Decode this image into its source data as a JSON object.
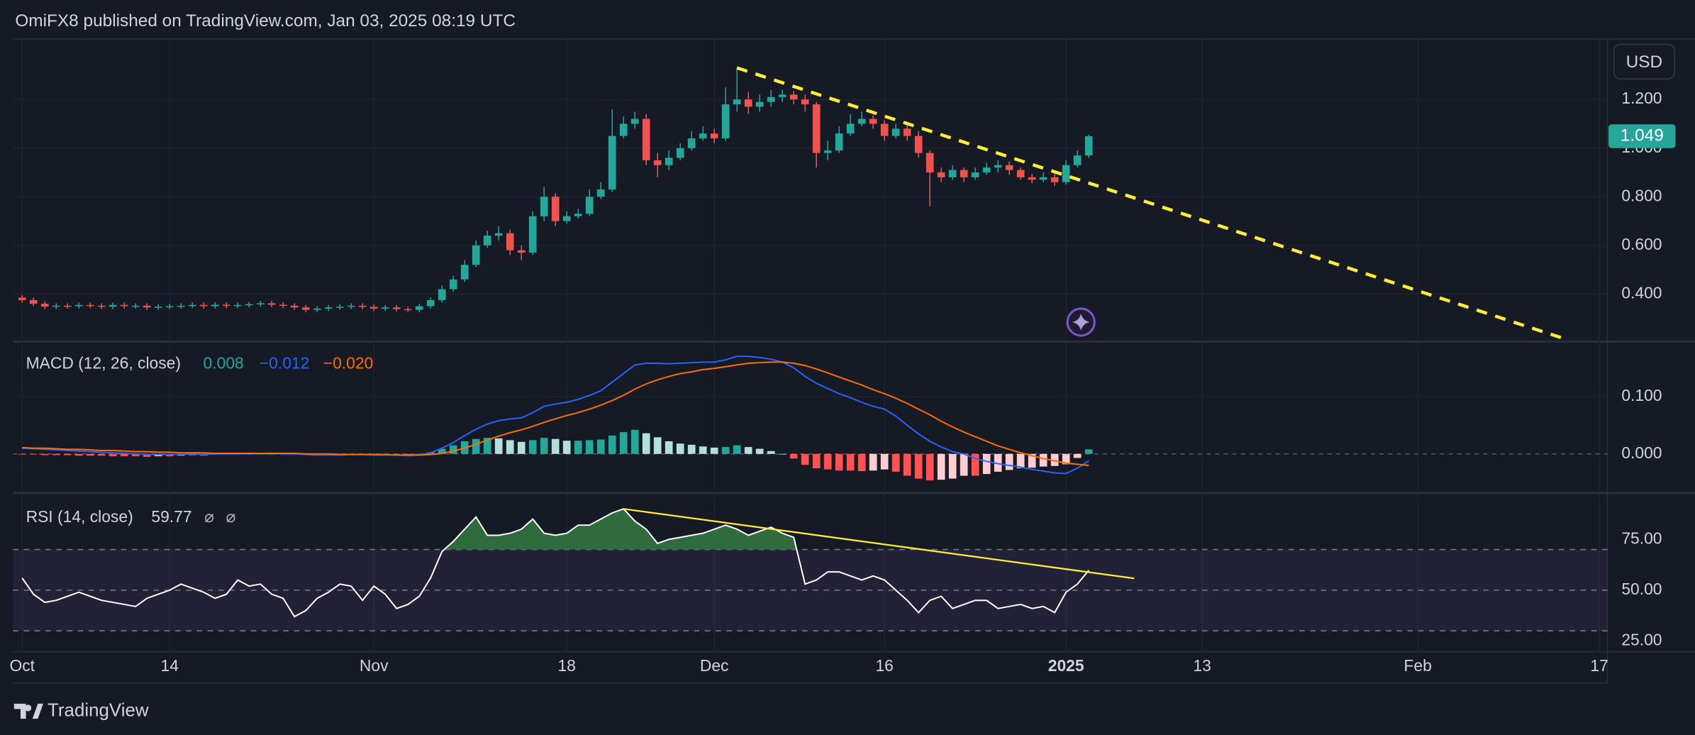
{
  "header": "OmiFX8 published on TradingView.com, Jan 03, 2025 08:19 UTC",
  "footer": "TradingView",
  "chart_data": {
    "type": "candlestick",
    "currency": "USD",
    "x": [
      "2024-10-01",
      "2024-10-02",
      "2024-10-03",
      "2024-10-04",
      "2024-10-05",
      "2024-10-06",
      "2024-10-07",
      "2024-10-08",
      "2024-10-09",
      "2024-10-10",
      "2024-10-11",
      "2024-10-12",
      "2024-10-13",
      "2024-10-14",
      "2024-10-15",
      "2024-10-16",
      "2024-10-17",
      "2024-10-18",
      "2024-10-19",
      "2024-10-20",
      "2024-10-21",
      "2024-10-22",
      "2024-10-23",
      "2024-10-24",
      "2024-10-25",
      "2024-10-26",
      "2024-10-27",
      "2024-10-28",
      "2024-10-29",
      "2024-10-30",
      "2024-10-31",
      "2024-11-01",
      "2024-11-02",
      "2024-11-03",
      "2024-11-04",
      "2024-11-05",
      "2024-11-06",
      "2024-11-07",
      "2024-11-08",
      "2024-11-09",
      "2024-11-10",
      "2024-11-11",
      "2024-11-12",
      "2024-11-13",
      "2024-11-14",
      "2024-11-15",
      "2024-11-16",
      "2024-11-17",
      "2024-11-18",
      "2024-11-19",
      "2024-11-20",
      "2024-11-21",
      "2024-11-22",
      "2024-11-23",
      "2024-11-24",
      "2024-11-25",
      "2024-11-26",
      "2024-11-27",
      "2024-11-28",
      "2024-11-29",
      "2024-11-30",
      "2024-12-01",
      "2024-12-02",
      "2024-12-03",
      "2024-12-04",
      "2024-12-05",
      "2024-12-06",
      "2024-12-07",
      "2024-12-08",
      "2024-12-09",
      "2024-12-10",
      "2024-12-11",
      "2024-12-12",
      "2024-12-13",
      "2024-12-14",
      "2024-12-15",
      "2024-12-16",
      "2024-12-17",
      "2024-12-18",
      "2024-12-19",
      "2024-12-20",
      "2024-12-21",
      "2024-12-22",
      "2024-12-23",
      "2024-12-24",
      "2024-12-25",
      "2024-12-26",
      "2024-12-27",
      "2024-12-28",
      "2024-12-29",
      "2024-12-30",
      "2024-12-31",
      "2025-01-01",
      "2025-01-02",
      "2025-01-03"
    ],
    "xlim": [
      "2024-09-30",
      "2025-02-18"
    ],
    "xticks": [
      {
        "value": "2024-10-01",
        "label": "Oct"
      },
      {
        "value": "2024-10-14",
        "label": "14"
      },
      {
        "value": "2024-11-01",
        "label": "Nov"
      },
      {
        "value": "2024-11-18",
        "label": "18"
      },
      {
        "value": "2024-12-01",
        "label": "Dec"
      },
      {
        "value": "2024-12-16",
        "label": "16"
      },
      {
        "value": "2025-01-01",
        "label": "2025",
        "bold": true
      },
      {
        "value": "2025-01-13",
        "label": "13"
      },
      {
        "value": "2025-02-01",
        "label": "Feb"
      },
      {
        "value": "2025-02-17",
        "label": "17"
      }
    ],
    "open": [
      0.385,
      0.375,
      0.36,
      0.348,
      0.352,
      0.35,
      0.355,
      0.352,
      0.348,
      0.355,
      0.35,
      0.352,
      0.345,
      0.348,
      0.35,
      0.352,
      0.355,
      0.35,
      0.356,
      0.352,
      0.355,
      0.358,
      0.362,
      0.356,
      0.352,
      0.345,
      0.335,
      0.34,
      0.345,
      0.348,
      0.352,
      0.347,
      0.34,
      0.345,
      0.338,
      0.335,
      0.35,
      0.375,
      0.42,
      0.46,
      0.52,
      0.6,
      0.64,
      0.65,
      0.58,
      0.57,
      0.72,
      0.8,
      0.7,
      0.72,
      0.73,
      0.8,
      0.83,
      1.05,
      1.1,
      1.12,
      0.95,
      0.93,
      0.96,
      1.0,
      1.04,
      1.06,
      1.04,
      1.18,
      1.2,
      1.17,
      1.19,
      1.21,
      1.22,
      1.2,
      1.18,
      0.98,
      0.99,
      1.06,
      1.1,
      1.12,
      1.1,
      1.05,
      1.08,
      1.05,
      0.98,
      0.9,
      0.88,
      0.91,
      0.88,
      0.9,
      0.92,
      0.93,
      0.91,
      0.88,
      0.87,
      0.88,
      0.86,
      0.93,
      0.97
    ],
    "high": [
      0.395,
      0.385,
      0.37,
      0.362,
      0.362,
      0.365,
      0.365,
      0.362,
      0.365,
      0.365,
      0.362,
      0.362,
      0.358,
      0.36,
      0.362,
      0.365,
      0.365,
      0.366,
      0.366,
      0.365,
      0.368,
      0.372,
      0.372,
      0.366,
      0.362,
      0.355,
      0.35,
      0.355,
      0.358,
      0.362,
      0.362,
      0.357,
      0.355,
      0.355,
      0.348,
      0.36,
      0.385,
      0.435,
      0.475,
      0.54,
      0.62,
      0.66,
      0.68,
      0.665,
      0.6,
      0.74,
      0.84,
      0.815,
      0.74,
      0.75,
      0.83,
      0.86,
      1.16,
      1.13,
      1.15,
      1.14,
      0.98,
      0.99,
      1.02,
      1.07,
      1.09,
      1.08,
      1.25,
      1.33,
      1.23,
      1.22,
      1.24,
      1.24,
      1.235,
      1.22,
      1.19,
      1.03,
      1.09,
      1.14,
      1.15,
      1.135,
      1.115,
      1.1,
      1.095,
      1.07,
      0.99,
      0.92,
      0.93,
      0.92,
      0.92,
      0.94,
      0.95,
      0.945,
      0.92,
      0.895,
      0.9,
      0.895,
      0.95,
      0.99,
      1.055
    ],
    "low": [
      0.365,
      0.35,
      0.338,
      0.338,
      0.34,
      0.34,
      0.342,
      0.338,
      0.338,
      0.34,
      0.34,
      0.335,
      0.335,
      0.338,
      0.34,
      0.342,
      0.34,
      0.34,
      0.342,
      0.342,
      0.345,
      0.348,
      0.346,
      0.342,
      0.335,
      0.325,
      0.325,
      0.33,
      0.335,
      0.338,
      0.337,
      0.33,
      0.33,
      0.328,
      0.325,
      0.325,
      0.34,
      0.365,
      0.41,
      0.45,
      0.51,
      0.59,
      0.62,
      0.56,
      0.54,
      0.56,
      0.7,
      0.68,
      0.69,
      0.71,
      0.72,
      0.79,
      0.82,
      1.04,
      1.08,
      0.93,
      0.88,
      0.91,
      0.95,
      0.99,
      1.03,
      1.02,
      1.03,
      1.15,
      1.14,
      1.15,
      1.17,
      1.19,
      1.18,
      1.15,
      0.92,
      0.95,
      0.98,
      1.05,
      1.09,
      1.08,
      1.03,
      1.04,
      1.03,
      0.96,
      0.76,
      0.86,
      0.87,
      0.86,
      0.87,
      0.89,
      0.9,
      0.89,
      0.87,
      0.855,
      0.86,
      0.845,
      0.85,
      0.92,
      0.96
    ],
    "close": [
      0.375,
      0.36,
      0.348,
      0.352,
      0.35,
      0.355,
      0.352,
      0.348,
      0.355,
      0.35,
      0.352,
      0.345,
      0.348,
      0.35,
      0.352,
      0.355,
      0.35,
      0.356,
      0.352,
      0.355,
      0.358,
      0.362,
      0.356,
      0.352,
      0.345,
      0.335,
      0.34,
      0.345,
      0.348,
      0.352,
      0.347,
      0.34,
      0.345,
      0.338,
      0.335,
      0.35,
      0.375,
      0.42,
      0.46,
      0.52,
      0.6,
      0.64,
      0.65,
      0.58,
      0.57,
      0.72,
      0.8,
      0.7,
      0.72,
      0.73,
      0.8,
      0.83,
      1.05,
      1.1,
      1.12,
      0.95,
      0.93,
      0.96,
      1.0,
      1.04,
      1.06,
      1.04,
      1.18,
      1.2,
      1.17,
      1.19,
      1.21,
      1.22,
      1.2,
      1.18,
      0.98,
      0.99,
      1.06,
      1.1,
      1.12,
      1.1,
      1.05,
      1.08,
      1.05,
      0.98,
      0.9,
      0.88,
      0.91,
      0.88,
      0.9,
      0.92,
      0.93,
      0.91,
      0.88,
      0.87,
      0.88,
      0.86,
      0.93,
      0.97,
      1.049
    ],
    "color_up": "#26a69a",
    "color_down": "#ef5350",
    "ylim": [
      0.209,
      1.449
    ],
    "yticks": [
      {
        "value": 0.4,
        "label": "0.400"
      },
      {
        "value": 0.6,
        "label": "0.600"
      },
      {
        "value": 0.8,
        "label": "0.800"
      },
      {
        "value": 1.0,
        "label": "1.000"
      },
      {
        "value": 1.2,
        "label": "1.200"
      }
    ],
    "grid": true,
    "trendline": {
      "color": "#ffeb3b",
      "dashed": true,
      "points": [
        {
          "x": "2024-12-03",
          "y": 1.33
        },
        {
          "x": "2025-02-14",
          "y": 0.215
        }
      ]
    },
    "indicators": [
      {
        "type": "macd",
        "title": "MACD (12, 26, close)",
        "ylim": [
          -0.066,
          0.192
        ],
        "yticks": [
          {
            "value": 0,
            "label": "0.000"
          },
          {
            "value": 0.1,
            "label": "0.100"
          }
        ],
        "series": [
          {
            "type": "histogram",
            "colors": [
              "#26a69a",
              "#b2dfdb",
              "#ffcdd2",
              "#ff5252"
            ],
            "values": [
              -0.001,
              -0.001,
              -0.002,
              -0.002,
              -0.002,
              -0.003,
              -0.003,
              -0.003,
              -0.004,
              -0.004,
              -0.004,
              -0.005,
              -0.004,
              -0.004,
              -0.003,
              -0.002,
              -0.003,
              -0.001,
              -0.001,
              -0.001,
              -0.001,
              0.0,
              0.0,
              -0.001,
              -0.001,
              -0.001,
              -0.002,
              -0.002,
              -0.001,
              0.0,
              0.0,
              -0.001,
              -0.001,
              0.0,
              -0.001,
              0.0,
              0.003,
              0.009,
              0.015,
              0.022,
              0.026,
              0.028,
              0.027,
              0.024,
              0.021,
              0.024,
              0.028,
              0.026,
              0.023,
              0.023,
              0.024,
              0.025,
              0.032,
              0.038,
              0.042,
              0.036,
              0.029,
              0.022,
              0.018,
              0.016,
              0.013,
              0.011,
              0.012,
              0.015,
              0.012,
              0.009,
              0.005,
              0.0,
              -0.008,
              -0.019,
              -0.025,
              -0.027,
              -0.029,
              -0.029,
              -0.03,
              -0.029,
              -0.027,
              -0.031,
              -0.038,
              -0.043,
              -0.046,
              -0.045,
              -0.043,
              -0.038,
              -0.038,
              -0.035,
              -0.031,
              -0.028,
              -0.025,
              -0.024,
              -0.022,
              -0.021,
              -0.018,
              -0.007,
              0.008
            ]
          },
          {
            "type": "line",
            "color": "#2962ff",
            "legend_label": "−0.012",
            "values": [
              0.01,
              0.009,
              0.008,
              0.007,
              0.006,
              0.005,
              0.004,
              0.003,
              0.002,
              0.001,
              0.0,
              -0.001,
              -0.001,
              -0.001,
              -0.001,
              0.0,
              -0.001,
              0.0,
              0.0,
              0.0,
              0.0,
              0.001,
              0.001,
              0.0,
              0.0,
              -0.001,
              -0.002,
              -0.002,
              -0.002,
              -0.001,
              -0.001,
              -0.002,
              -0.002,
              -0.002,
              -0.003,
              -0.002,
              0.002,
              0.01,
              0.02,
              0.032,
              0.043,
              0.052,
              0.058,
              0.061,
              0.063,
              0.072,
              0.083,
              0.087,
              0.09,
              0.095,
              0.102,
              0.11,
              0.125,
              0.14,
              0.155,
              0.158,
              0.158,
              0.157,
              0.158,
              0.159,
              0.16,
              0.16,
              0.164,
              0.17,
              0.17,
              0.168,
              0.165,
              0.16,
              0.15,
              0.135,
              0.123,
              0.114,
              0.105,
              0.098,
              0.09,
              0.083,
              0.078,
              0.066,
              0.05,
              0.035,
              0.022,
              0.012,
              0.004,
              0.0,
              -0.008,
              -0.013,
              -0.017,
              -0.02,
              -0.023,
              -0.027,
              -0.03,
              -0.033,
              -0.034,
              -0.025,
              -0.012
            ]
          },
          {
            "type": "line",
            "color": "#ff6d00",
            "legend_label": "−0.020",
            "values": [
              0.011,
              0.01,
              0.01,
              0.009,
              0.008,
              0.008,
              0.007,
              0.006,
              0.006,
              0.005,
              0.004,
              0.004,
              0.003,
              0.003,
              0.002,
              0.002,
              0.002,
              0.001,
              0.001,
              0.001,
              0.001,
              0.001,
              0.001,
              0.001,
              0.001,
              0.0,
              0.0,
              0.0,
              -0.001,
              -0.001,
              -0.001,
              -0.001,
              -0.001,
              -0.002,
              -0.002,
              -0.002,
              -0.001,
              0.001,
              0.005,
              0.01,
              0.017,
              0.024,
              0.031,
              0.037,
              0.042,
              0.048,
              0.055,
              0.061,
              0.067,
              0.072,
              0.078,
              0.085,
              0.093,
              0.102,
              0.113,
              0.122,
              0.129,
              0.135,
              0.14,
              0.143,
              0.147,
              0.149,
              0.152,
              0.155,
              0.158,
              0.159,
              0.16,
              0.16,
              0.158,
              0.154,
              0.148,
              0.141,
              0.134,
              0.127,
              0.12,
              0.112,
              0.105,
              0.097,
              0.088,
              0.078,
              0.068,
              0.057,
              0.047,
              0.038,
              0.03,
              0.022,
              0.014,
              0.008,
              0.002,
              -0.003,
              -0.008,
              -0.012,
              -0.016,
              -0.018,
              -0.02
            ]
          }
        ]
      },
      {
        "type": "rsi",
        "title": "RSI (14, close)",
        "icons": [
          "⌀",
          "⌀"
        ],
        "ylim": [
          21.3,
          96.8
        ],
        "yticks": [
          {
            "value": 25,
            "label": "25.00"
          },
          {
            "value": 50,
            "label": "50.00"
          },
          {
            "value": 75,
            "label": "75.00"
          }
        ],
        "bands": {
          "upper": 70,
          "middle": 50,
          "lower": 30,
          "color": "#7e57c2",
          "overbought_fill": "#2f6b3c"
        },
        "color": "#ffffff",
        "values": [
          56,
          48,
          44,
          45,
          47,
          49,
          47,
          45,
          44,
          43,
          42,
          46,
          48,
          50,
          53,
          51,
          49,
          46,
          48,
          55,
          52,
          53,
          48,
          46,
          37,
          40,
          46,
          49,
          53,
          52,
          45,
          52,
          48,
          41,
          43,
          47,
          56,
          69,
          74,
          80,
          86,
          77,
          77,
          78,
          80,
          85,
          78,
          77,
          78,
          82,
          82,
          85,
          88,
          90,
          84,
          80,
          73,
          75,
          76,
          77,
          78,
          80,
          82,
          80,
          77,
          79,
          81,
          78,
          76,
          53,
          55,
          59,
          59,
          57,
          55,
          57,
          55,
          50,
          45,
          39,
          45,
          47,
          41,
          43,
          45,
          45,
          41,
          42,
          43,
          41,
          42,
          39,
          49,
          53,
          59.77
        ],
        "trendline": {
          "color": "#ffeb3b",
          "points": [
            {
              "x": "2024-11-23",
              "y": 90
            },
            {
              "x": "2025-01-07",
              "y": 55.8
            }
          ]
        }
      }
    ]
  }
}
